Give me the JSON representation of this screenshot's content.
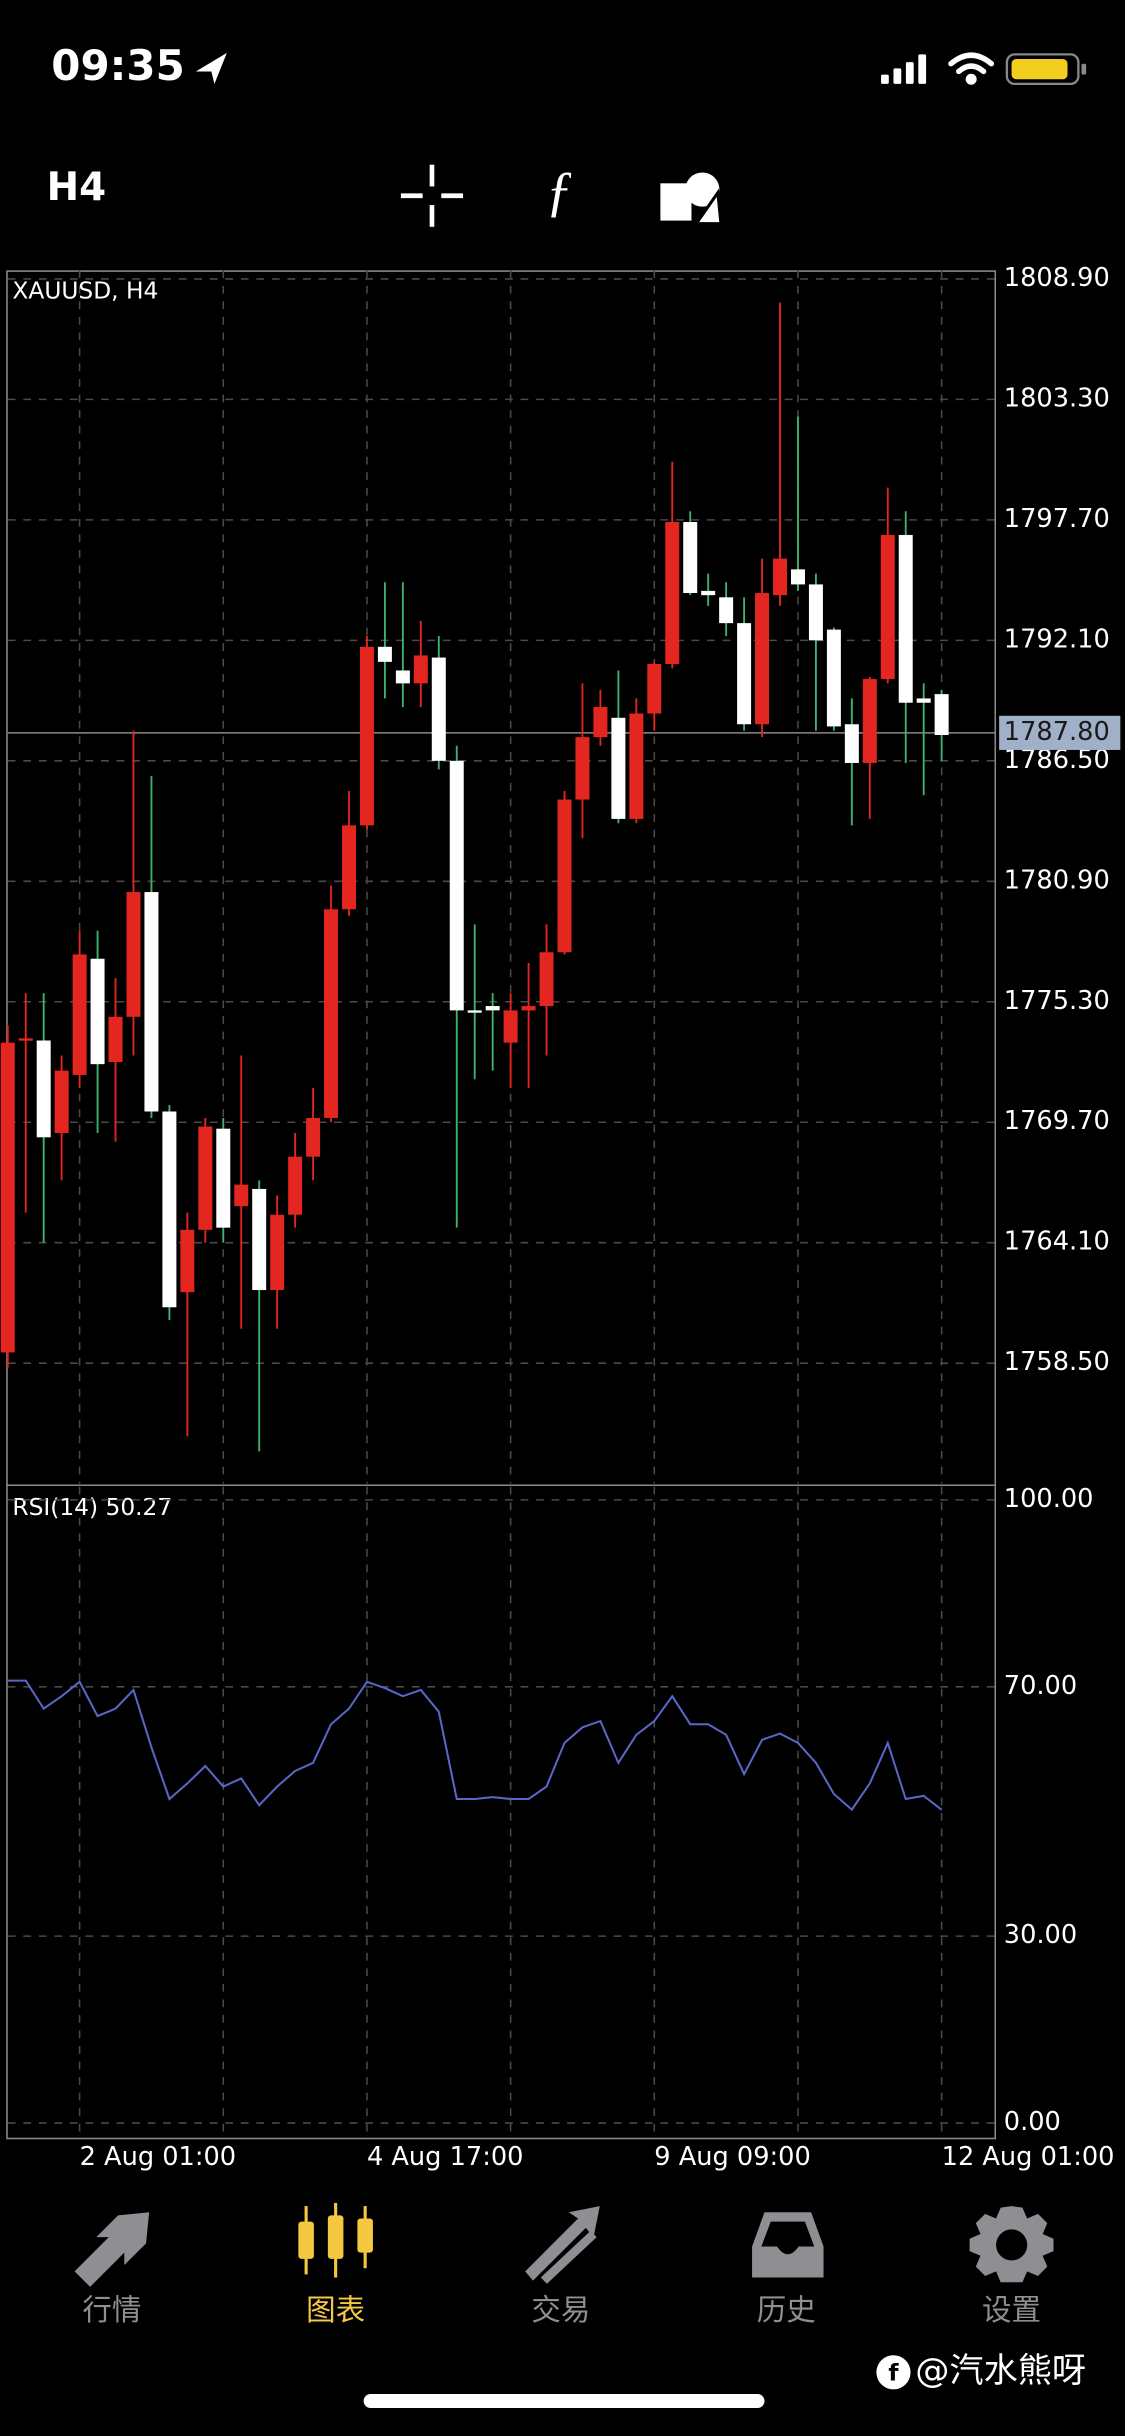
{
  "status_bar": {
    "time": "09:35"
  },
  "toolbar": {
    "timeframe": "H4"
  },
  "chart_data": [
    {
      "type": "candlestick",
      "title": "XAUUSD, H4",
      "categories": [
        null,
        null,
        null,
        null,
        "2 Aug 01:00",
        null,
        null,
        null,
        null,
        null,
        null,
        null,
        null,
        null,
        null,
        null,
        null,
        null,
        null,
        null,
        "4 Aug 17:00",
        null,
        null,
        null,
        null,
        null,
        null,
        null,
        null,
        null,
        null,
        null,
        null,
        null,
        null,
        null,
        "9 Aug 09:00",
        null,
        null,
        null,
        null,
        null,
        null,
        null,
        null,
        null,
        null,
        null,
        null,
        null,
        null,
        null,
        "12 Aug 01:00"
      ],
      "open": [
        1759.0,
        1773.5,
        1773.5,
        1769.2,
        1771.9,
        1777.3,
        1772.5,
        1774.6,
        1780.4,
        1770.2,
        1761.8,
        1764.7,
        1769.4,
        1765.8,
        1766.6,
        1761.9,
        1765.4,
        1768.1,
        1769.9,
        1779.6,
        1783.5,
        1791.8,
        1790.7,
        1790.1,
        1791.3,
        1786.5,
        1774.9,
        1775.1,
        1773.4,
        1774.9,
        1775.1,
        1777.6,
        1784.7,
        1787.6,
        1788.5,
        1783.8,
        1788.7,
        1791.0,
        1797.6,
        1794.4,
        1794.1,
        1792.9,
        1788.2,
        1794.2,
        1795.4,
        1794.7,
        1792.6,
        1788.2,
        1786.4,
        1790.3,
        1797.0,
        1789.4,
        1789.6
      ],
      "high": [
        1774.2,
        1775.7,
        1775.7,
        1772.8,
        1778.6,
        1778.6,
        1776.4,
        1787.9,
        1785.8,
        1770.5,
        1765.5,
        1769.9,
        1769.9,
        1772.8,
        1767.0,
        1766.3,
        1769.2,
        1771.3,
        1780.7,
        1785.1,
        1792.3,
        1794.8,
        1794.8,
        1793.0,
        1792.3,
        1787.2,
        1778.9,
        1775.7,
        1775.7,
        1777.1,
        1778.9,
        1785.1,
        1790.1,
        1789.8,
        1790.7,
        1789.4,
        1791.1,
        1800.4,
        1798.1,
        1795.2,
        1794.8,
        1794.1,
        1795.9,
        1807.8,
        1802.5,
        1795.2,
        1792.7,
        1789.4,
        1790.4,
        1799.2,
        1798.1,
        1790.1,
        1789.8
      ],
      "low": [
        1758.3,
        1765.5,
        1764.1,
        1767.0,
        1771.3,
        1769.2,
        1768.8,
        1772.8,
        1769.9,
        1760.5,
        1755.1,
        1764.1,
        1764.1,
        1760.1,
        1754.4,
        1760.1,
        1764.8,
        1767.0,
        1769.7,
        1779.3,
        1783.3,
        1789.4,
        1789.0,
        1789.0,
        1786.1,
        1764.8,
        1771.7,
        1772.1,
        1771.3,
        1771.3,
        1772.8,
        1777.5,
        1782.9,
        1787.2,
        1783.6,
        1783.6,
        1787.9,
        1790.8,
        1794.2,
        1793.7,
        1792.3,
        1787.9,
        1787.6,
        1793.7,
        1794.4,
        1787.9,
        1787.9,
        1783.5,
        1783.8,
        1790.1,
        1786.4,
        1784.9,
        1786.5
      ],
      "close": [
        1773.4,
        1773.6,
        1769.0,
        1772.1,
        1777.5,
        1772.4,
        1774.6,
        1780.4,
        1770.2,
        1761.1,
        1764.7,
        1769.5,
        1764.8,
        1766.8,
        1761.9,
        1765.4,
        1768.1,
        1769.9,
        1779.6,
        1783.5,
        1791.8,
        1791.1,
        1790.1,
        1791.4,
        1786.5,
        1774.9,
        1774.8,
        1774.9,
        1774.9,
        1775.1,
        1777.6,
        1784.7,
        1787.6,
        1789.0,
        1783.8,
        1788.7,
        1791.0,
        1797.6,
        1794.3,
        1794.2,
        1792.9,
        1788.2,
        1794.3,
        1795.9,
        1794.7,
        1792.1,
        1788.1,
        1786.4,
        1790.3,
        1797.0,
        1789.2,
        1789.2,
        1787.7
      ],
      "up_color": "#e3261f",
      "down_color": "#ffffff",
      "down_wick_color": "#3cb371",
      "ylim": [
        1752.9,
        1809.3
      ],
      "yticks": [
        {
          "value": 1808.9,
          "label": "1808.90"
        },
        {
          "value": 1803.3,
          "label": "1803.30"
        },
        {
          "value": 1797.7,
          "label": "1797.70"
        },
        {
          "value": 1792.1,
          "label": "1792.10"
        },
        {
          "value": 1786.5,
          "label": "1786.50"
        },
        {
          "value": 1780.9,
          "label": "1780.90"
        },
        {
          "value": 1775.3,
          "label": "1775.30"
        },
        {
          "value": 1769.7,
          "label": "1769.70"
        },
        {
          "value": 1764.1,
          "label": "1764.10"
        },
        {
          "value": 1758.5,
          "label": "1758.50"
        }
      ],
      "current_price": {
        "value": 1787.8,
        "label": "1787.80"
      },
      "grid": true
    },
    {
      "type": "line",
      "title": "RSI(14) 50.27",
      "values": [
        71.0,
        71.0,
        66.5,
        68.5,
        70.8,
        65.3,
        66.5,
        69.5,
        60.3,
        52.0,
        54.5,
        57.3,
        54.0,
        55.3,
        51.0,
        54.0,
        56.5,
        57.8,
        64.0,
        66.5,
        70.8,
        69.8,
        68.5,
        69.5,
        66.0,
        52.0,
        52.0,
        52.3,
        52.0,
        52.0,
        54.0,
        61.0,
        63.5,
        64.5,
        57.8,
        62.3,
        64.5,
        68.5,
        64.0,
        64.0,
        62.3,
        56.0,
        61.5,
        62.5,
        61.0,
        57.8,
        52.8,
        50.3,
        54.5,
        61.0,
        52.0,
        52.5,
        50.27
      ],
      "color": "#5a67c8",
      "ylim": [
        -2.6,
        102.1
      ],
      "yticks": [
        {
          "value": 0,
          "label": "0.00"
        },
        {
          "value": 30,
          "label": "30.00"
        },
        {
          "value": 70,
          "label": "70.00"
        },
        {
          "value": 100,
          "label": "100.00"
        }
      ],
      "grid": true
    }
  ],
  "tab_bar": {
    "tabs": [
      "行情",
      "图表",
      "交易",
      "历史",
      "设置"
    ],
    "active": 1
  },
  "watermark": "@汽水熊呀"
}
